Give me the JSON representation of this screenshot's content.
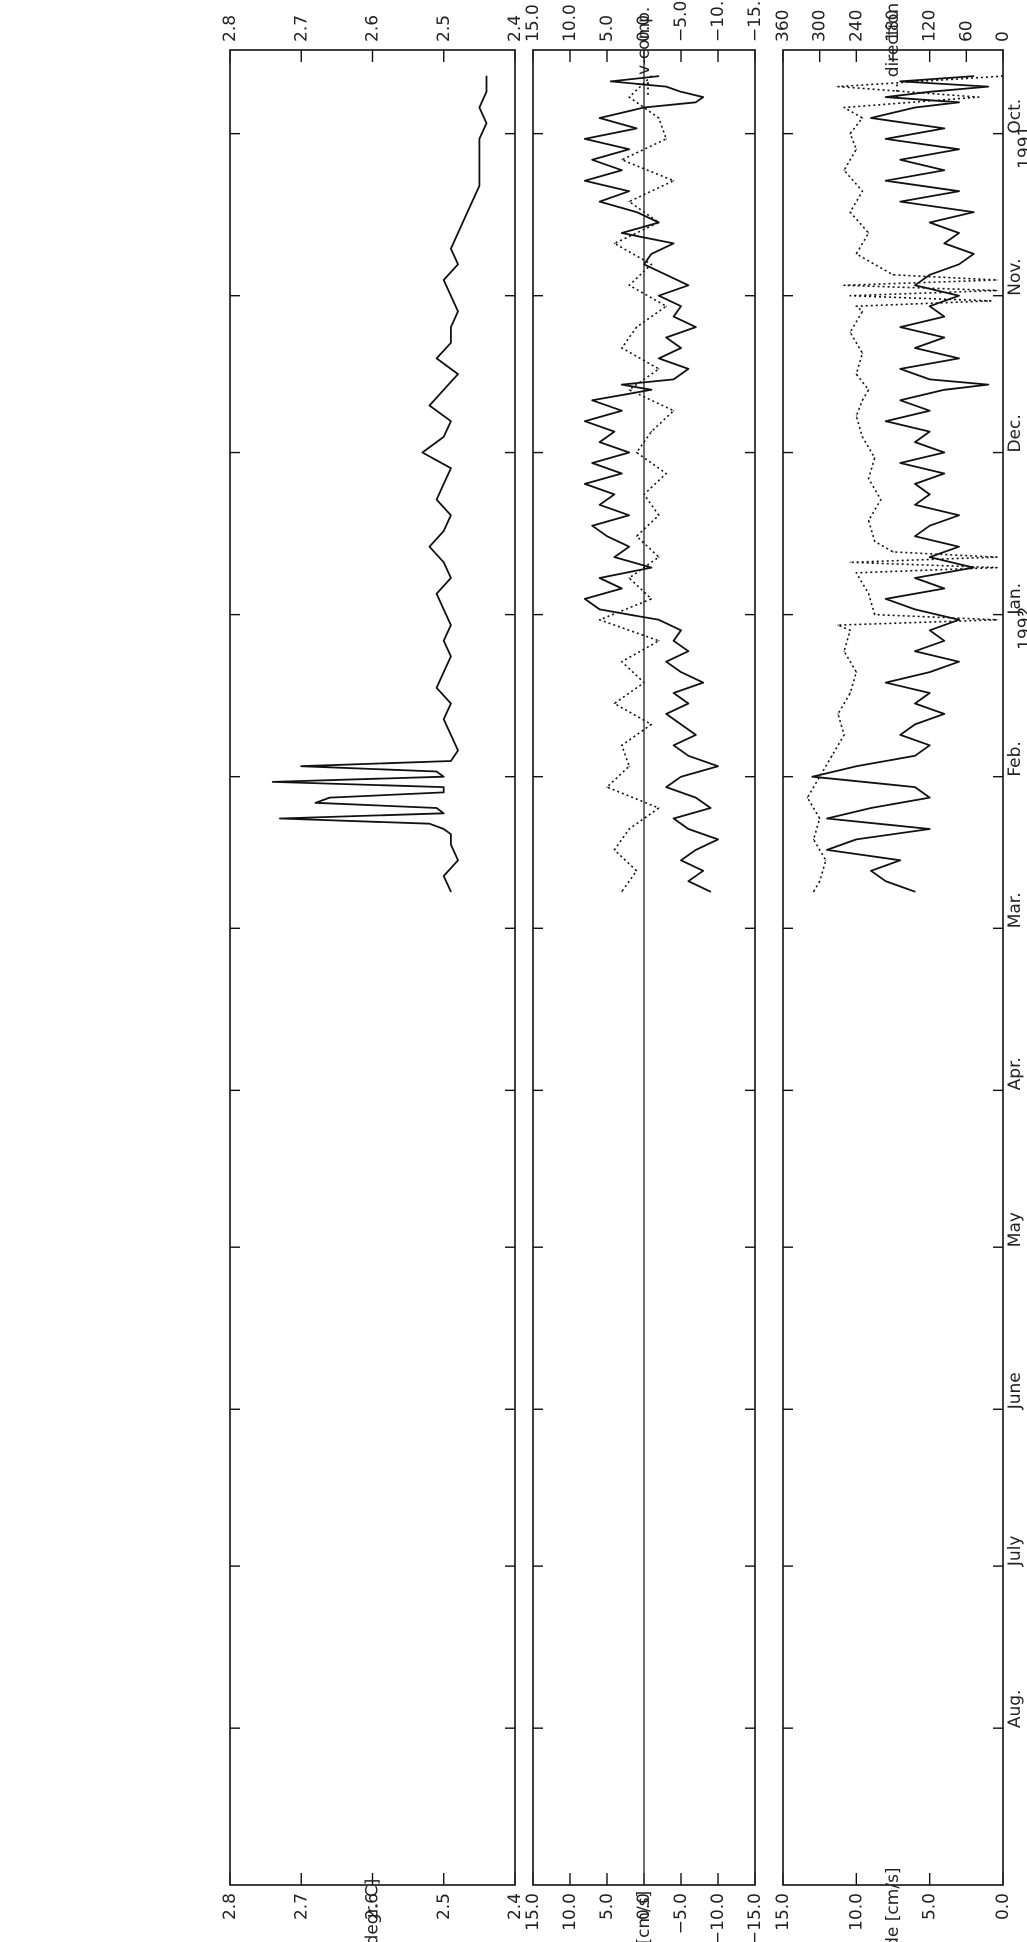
{
  "chart_data": [
    {
      "type": "line",
      "panel": "temperature",
      "title": "",
      "xlabel": "",
      "x_tick_labels": [
        "Oct.",
        "Nov.",
        "Dec.",
        "Jan.",
        "Feb.",
        "Mar.",
        "Apr.",
        "May",
        "June",
        "July",
        "Aug."
      ],
      "x_year_labels": [
        "1991",
        "1992"
      ],
      "ylabel": "temp. [degr. C]",
      "ylabel_right": "",
      "ylim": [
        2.4,
        2.8
      ],
      "yticks": [
        "2.8",
        "2.7",
        "2.6",
        "2.5",
        "2.4"
      ],
      "yticks_minor": [
        "2.8",
        "2.7",
        "2.6",
        "2.5",
        "2.4"
      ],
      "grid": false,
      "series": [
        {
          "style": "solid",
          "x": [
            "1991-09-20",
            "1991-09-23",
            "1991-09-26",
            "1991-09-29",
            "1991-10-02",
            "1991-10-05",
            "1991-10-08",
            "1991-10-11",
            "1991-10-14",
            "1991-10-17",
            "1991-10-20",
            "1991-10-23",
            "1991-10-26",
            "1991-10-29",
            "1991-11-01",
            "1991-11-04",
            "1991-11-07",
            "1991-11-10",
            "1991-11-13",
            "1991-11-16",
            "1991-11-19",
            "1991-11-22",
            "1991-11-25",
            "1991-11-28",
            "1991-12-01",
            "1991-12-04",
            "1991-12-07",
            "1991-12-10",
            "1991-12-13",
            "1991-12-16",
            "1991-12-19",
            "1991-12-22",
            "1991-12-25",
            "1991-12-28",
            "1991-12-31",
            "1992-01-03",
            "1992-01-06",
            "1992-01-09",
            "1992-01-12",
            "1992-01-15",
            "1992-01-18",
            "1992-01-21",
            "1992-01-24",
            "1992-01-27",
            "1992-01-29",
            "1992-01-30",
            "1992-01-31",
            "1992-02-01",
            "1992-02-02",
            "1992-02-03",
            "1992-02-04",
            "1992-02-05",
            "1992-02-06",
            "1992-02-07",
            "1992-02-08",
            "1992-02-09",
            "1992-02-10",
            "1992-02-11",
            "1992-02-12",
            "1992-02-14",
            "1992-02-17",
            "1992-02-20",
            "1992-02-23"
          ],
          "y": [
            2.44,
            2.44,
            2.45,
            2.44,
            2.45,
            2.45,
            2.45,
            2.45,
            2.46,
            2.47,
            2.48,
            2.49,
            2.48,
            2.5,
            2.49,
            2.48,
            2.49,
            2.49,
            2.51,
            2.48,
            2.5,
            2.52,
            2.49,
            2.5,
            2.53,
            2.49,
            2.5,
            2.51,
            2.49,
            2.5,
            2.52,
            2.5,
            2.49,
            2.51,
            2.5,
            2.49,
            2.5,
            2.49,
            2.5,
            2.51,
            2.49,
            2.5,
            2.49,
            2.48,
            2.49,
            2.7,
            2.51,
            2.5,
            2.74,
            2.5,
            2.5,
            2.66,
            2.68,
            2.51,
            2.5,
            2.73,
            2.52,
            2.5,
            2.49,
            2.49,
            2.48,
            2.5,
            2.49
          ]
        }
      ]
    },
    {
      "type": "line",
      "panel": "velocity-components",
      "title": "",
      "xlabel": "",
      "x_tick_labels": [
        "Oct.",
        "Nov.",
        "Dec.",
        "Jan.",
        "Feb.",
        "Mar.",
        "Apr.",
        "May",
        "June",
        "July",
        "Aug."
      ],
      "ylabel": "u-comp. [cm/s]",
      "ylabel_right": "... v-comp. [cm/s]",
      "ylim": [
        -15,
        15
      ],
      "yticks": [
        "15.0",
        "10.0",
        "5.0",
        "0.0",
        "−5.0",
        "−10.0",
        "−15.0"
      ],
      "yticks_right": [
        "15.0",
        "10.0",
        "5.0",
        "0.0",
        "−5.0",
        "−10.0",
        "−15.0"
      ],
      "zero_line": true,
      "grid": false,
      "series": [
        {
          "style": "solid",
          "x": [
            "1991-09-20",
            "1991-09-21",
            "1991-09-22",
            "1991-09-23",
            "1991-09-24",
            "1991-09-25",
            "1991-09-26",
            "1991-09-28",
            "1991-09-30",
            "1991-10-02",
            "1991-10-04",
            "1991-10-06",
            "1991-10-08",
            "1991-10-10",
            "1991-10-12",
            "1991-10-14",
            "1991-10-16",
            "1991-10-18",
            "1991-10-20",
            "1991-10-22",
            "1991-10-24",
            "1991-10-26",
            "1991-10-28",
            "1991-10-30",
            "1991-11-01",
            "1991-11-03",
            "1991-11-05",
            "1991-11-07",
            "1991-11-09",
            "1991-11-11",
            "1991-11-13",
            "1991-11-15",
            "1991-11-17",
            "1991-11-18",
            "1991-11-19",
            "1991-11-21",
            "1991-11-23",
            "1991-11-25",
            "1991-11-27",
            "1991-11-29",
            "1991-12-01",
            "1991-12-03",
            "1991-12-05",
            "1991-12-07",
            "1991-12-09",
            "1991-12-11",
            "1991-12-13",
            "1991-12-15",
            "1991-12-17",
            "1991-12-19",
            "1991-12-21",
            "1991-12-23",
            "1991-12-25",
            "1991-12-27",
            "1991-12-29",
            "1991-12-31",
            "1992-01-02",
            "1992-01-04",
            "1992-01-06",
            "1992-01-08",
            "1992-01-10",
            "1992-01-12",
            "1992-01-14",
            "1992-01-16",
            "1992-01-18",
            "1992-01-20",
            "1992-01-22",
            "1992-01-24",
            "1992-01-26",
            "1992-01-28",
            "1992-01-30",
            "1992-02-01",
            "1992-02-03",
            "1992-02-05",
            "1992-02-07",
            "1992-02-09",
            "1992-02-11",
            "1992-02-13",
            "1992-02-15",
            "1992-02-17",
            "1992-02-19",
            "1992-02-21",
            "1992-02-23"
          ],
          "y": [
            -2,
            4.5,
            -3,
            -5,
            -8,
            -7,
            0,
            6,
            1,
            8,
            2,
            7,
            3,
            8,
            2,
            6,
            1,
            -2,
            3,
            -4,
            -1,
            0,
            -3,
            -6,
            -2,
            -5,
            -4,
            -7,
            -3,
            -5,
            -2,
            -6,
            -4,
            3,
            -1,
            7,
            3,
            8,
            4,
            6,
            2,
            7,
            3,
            8,
            4,
            6,
            2,
            7,
            5,
            2,
            4,
            -1,
            6,
            3,
            8,
            6,
            -2,
            -5,
            -4,
            -6,
            -3,
            -5,
            -8,
            -4,
            -6,
            -3,
            -5,
            -7,
            -4,
            -6,
            -10,
            -5,
            -3,
            -7,
            -9,
            -4,
            -6,
            -10,
            -7,
            -5,
            -8,
            -6,
            -9
          ]
        },
        {
          "style": "dotted",
          "x": [
            "1991-09-20",
            "1991-09-24",
            "1991-09-28",
            "1991-10-02",
            "1991-10-06",
            "1991-10-10",
            "1991-10-14",
            "1991-10-18",
            "1991-10-22",
            "1991-10-26",
            "1991-10-30",
            "1991-11-03",
            "1991-11-07",
            "1991-11-11",
            "1991-11-15",
            "1991-11-19",
            "1991-11-23",
            "1991-11-27",
            "1991-12-01",
            "1991-12-05",
            "1991-12-09",
            "1991-12-13",
            "1991-12-17",
            "1991-12-21",
            "1991-12-25",
            "1991-12-29",
            "1992-01-02",
            "1992-01-06",
            "1992-01-10",
            "1992-01-14",
            "1992-01-18",
            "1992-01-22",
            "1992-01-26",
            "1992-01-30",
            "1992-02-03",
            "1992-02-07",
            "1992-02-11",
            "1992-02-15",
            "1992-02-19",
            "1992-02-23"
          ],
          "y": [
            -1,
            2,
            -2,
            -3,
            3,
            -4,
            2,
            -2,
            4,
            -1,
            2,
            -3,
            1,
            3,
            -2,
            2,
            -4,
            -1,
            1,
            -3,
            0,
            -2,
            1,
            -2,
            2,
            -1,
            6,
            -2,
            3,
            0,
            4,
            -1,
            3,
            2,
            5,
            -2,
            2,
            4,
            1,
            3
          ]
        }
      ]
    },
    {
      "type": "line",
      "panel": "magnitude-direction",
      "title": "",
      "xlabel": "",
      "x_tick_labels": [
        "Oct.",
        "Nov.",
        "Dec.",
        "Jan.",
        "Feb.",
        "Mar.",
        "Apr.",
        "May",
        "June",
        "July",
        "Aug."
      ],
      "x_year_labels": [
        "1991",
        "1992"
      ],
      "ylabel": "magnitude [cm/s]",
      "ylabel_right": "... direction [degr]",
      "ylim": [
        0,
        15
      ],
      "ylim_right": [
        0,
        360
      ],
      "yticks": [
        "15.0",
        "10.0",
        "5.0",
        "0.0"
      ],
      "yticks_right": [
        "360",
        "300",
        "240",
        "180",
        "120",
        "60",
        "0"
      ],
      "grid": false,
      "series": [
        {
          "style": "solid",
          "x": [
            "1991-09-20",
            "1991-09-21",
            "1991-09-22",
            "1991-09-23",
            "1991-09-24",
            "1991-09-25",
            "1991-09-26",
            "1991-09-28",
            "1991-09-30",
            "1991-10-02",
            "1991-10-04",
            "1991-10-06",
            "1991-10-08",
            "1991-10-10",
            "1991-10-12",
            "1991-10-14",
            "1991-10-16",
            "1991-10-18",
            "1991-10-20",
            "1991-10-22",
            "1991-10-24",
            "1991-10-26",
            "1991-10-28",
            "1991-10-30",
            "1991-11-01",
            "1991-11-03",
            "1991-11-05",
            "1991-11-07",
            "1991-11-09",
            "1991-11-11",
            "1991-11-13",
            "1991-11-15",
            "1991-11-17",
            "1991-11-18",
            "1991-11-19",
            "1991-11-21",
            "1991-11-23",
            "1991-11-25",
            "1991-11-27",
            "1991-11-29",
            "1991-12-01",
            "1991-12-03",
            "1991-12-05",
            "1991-12-07",
            "1991-12-09",
            "1991-12-11",
            "1991-12-13",
            "1991-12-15",
            "1991-12-17",
            "1991-12-19",
            "1991-12-21",
            "1991-12-23",
            "1991-12-25",
            "1991-12-27",
            "1991-12-29",
            "1991-12-31",
            "1992-01-02",
            "1992-01-04",
            "1992-01-06",
            "1992-01-08",
            "1992-01-10",
            "1992-01-12",
            "1992-01-14",
            "1992-01-16",
            "1992-01-18",
            "1992-01-20",
            "1992-01-22",
            "1992-01-24",
            "1992-01-26",
            "1992-01-28",
            "1992-01-30",
            "1992-02-01",
            "1992-02-03",
            "1992-02-05",
            "1992-02-07",
            "1992-02-09",
            "1992-02-11",
            "1992-02-13",
            "1992-02-15",
            "1992-02-17",
            "1992-02-19",
            "1992-02-21",
            "1992-02-23"
          ],
          "y": [
            2,
            7,
            1,
            5,
            8,
            3,
            6,
            9,
            4,
            8,
            3,
            7,
            4,
            8,
            3,
            7,
            2,
            5,
            3,
            4,
            2,
            3,
            5,
            6,
            3,
            5,
            4,
            7,
            4,
            6,
            3,
            7,
            5,
            1,
            4,
            7,
            5,
            8,
            5,
            6,
            4,
            7,
            4,
            6,
            5,
            6,
            3,
            5,
            6,
            3,
            5,
            2,
            6,
            4,
            8,
            6,
            3,
            5,
            4,
            6,
            3,
            5,
            8,
            5,
            6,
            4,
            6,
            7,
            5,
            6,
            10,
            13,
            6,
            5,
            9,
            12,
            5,
            10,
            12,
            7,
            9,
            8,
            6
          ]
        },
        {
          "style": "dotted",
          "x": [
            "1991-09-20",
            "1991-09-22",
            "1991-09-24",
            "1991-09-26",
            "1991-09-28",
            "1991-10-01",
            "1991-10-04",
            "1991-10-08",
            "1991-10-12",
            "1991-10-16",
            "1991-10-20",
            "1991-10-24",
            "1991-10-28",
            "1991-10-29",
            "1991-10-30",
            "1991-10-31",
            "1991-11-01",
            "1991-11-02",
            "1991-11-03",
            "1991-11-04",
            "1991-11-08",
            "1991-11-12",
            "1991-11-16",
            "1991-11-19",
            "1991-11-21",
            "1991-11-24",
            "1991-11-28",
            "1991-12-02",
            "1991-12-06",
            "1991-12-10",
            "1991-12-14",
            "1991-12-18",
            "1991-12-20",
            "1991-12-21",
            "1991-12-22",
            "1991-12-23",
            "1991-12-24",
            "1991-12-28",
            "1992-01-01",
            "1992-01-02",
            "1992-01-03",
            "1992-01-04",
            "1992-01-08",
            "1992-01-12",
            "1992-01-16",
            "1992-01-20",
            "1992-01-24",
            "1992-01-28",
            "1992-02-01",
            "1992-02-03",
            "1992-02-05",
            "1992-02-09",
            "1992-02-13",
            "1992-02-17",
            "1992-02-21",
            "1992-02-23"
          ],
          "y": [
            0,
            270,
            40,
            260,
            230,
            250,
            240,
            260,
            230,
            250,
            220,
            240,
            180,
            10,
            260,
            10,
            250,
            20,
            240,
            230,
            250,
            230,
            240,
            220,
            230,
            240,
            230,
            210,
            220,
            200,
            220,
            210,
            180,
            10,
            250,
            10,
            240,
            220,
            210,
            10,
            270,
            250,
            260,
            240,
            250,
            270,
            260,
            280,
            300,
            310,
            320,
            300,
            310,
            290,
            300,
            310
          ]
        }
      ]
    }
  ]
}
